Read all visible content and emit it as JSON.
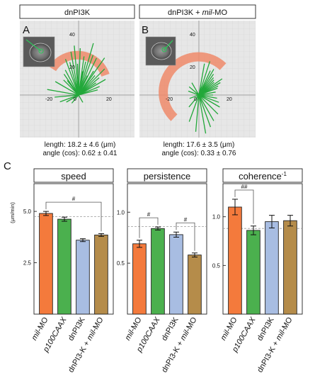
{
  "panel_a": {
    "letter": "A",
    "title": "dnPI3K",
    "tick_labels": [
      "40",
      "20",
      "-20",
      "0",
      "20"
    ],
    "length_label": "length: 18.2 ± 4.6 (μm)",
    "angle_label": "angle (cos): 0.62 ± 0.41"
  },
  "panel_b": {
    "letter": "B",
    "title_prefix": "dnPI3K + ",
    "title_italic": "mil",
    "title_suffix": "-MO",
    "tick_labels": [
      "40",
      "20",
      "-20",
      "0",
      "20"
    ],
    "length_label": "length: 17.6 ± 3.5 (μm)",
    "angle_label": "angle (cos): 0.33 ± 0.76"
  },
  "panel_c": {
    "letter": "C",
    "unit_label": "(μm/min)",
    "inverse_sup": "-1"
  },
  "category_labels": [
    {
      "italic": "mil",
      "rest": "-MO"
    },
    {
      "italic": "p100CAAX",
      "rest": ""
    },
    {
      "italic": "",
      "rest": "dnPI3K"
    },
    {
      "prefix": "dnPI3-K + ",
      "italic": "mil",
      "rest": "-MO"
    }
  ],
  "chart_data": [
    {
      "type": "bar",
      "title": "speed",
      "ylabel": "(μm/min)",
      "ylim": [
        0,
        6.35
      ],
      "yticks": [
        2.5,
        5.0
      ],
      "yticklabels": [
        "2.5",
        "5.0"
      ],
      "reference_line": 4.75,
      "categories": [
        "mil-MO",
        "p100CAAX",
        "dnPI3K",
        "dnPI3-K + mil-MO"
      ],
      "values": [
        4.9,
        4.62,
        3.6,
        3.85
      ],
      "errors": [
        0.1,
        0.1,
        0.07,
        0.07
      ],
      "colors": [
        "#f47a3c",
        "#4bb04e",
        "#a8bde2",
        "#b58c4a"
      ],
      "significance": [
        {
          "from": 0,
          "to": 3,
          "label": "#"
        }
      ]
    },
    {
      "type": "bar",
      "title": "persistence",
      "ylim": [
        0,
        1.28
      ],
      "yticks": [
        0.5,
        1.0
      ],
      "yticklabels": [
        "0.5",
        "1.0"
      ],
      "reference_line": 0.86,
      "categories": [
        "mil-MO",
        "p100CAAX",
        "dnPI3K",
        "dnPI3-K + mil-MO"
      ],
      "values": [
        0.69,
        0.84,
        0.78,
        0.58
      ],
      "errors": [
        0.035,
        0.015,
        0.025,
        0.02
      ],
      "colors": [
        "#f47a3c",
        "#4bb04e",
        "#a8bde2",
        "#b58c4a"
      ],
      "significance": [
        {
          "from": 0,
          "to": 1,
          "label": "#"
        },
        {
          "from": 2,
          "to": 3,
          "label": "#"
        }
      ]
    },
    {
      "type": "bar",
      "title": "coherence",
      "ylim": [
        0,
        1.34
      ],
      "yticks": [
        0.5,
        1.0
      ],
      "yticklabels": [
        "0.5",
        "1.0"
      ],
      "reference_line": 0.88,
      "categories": [
        "mil-MO",
        "p100CAAX",
        "dnPI3K",
        "dnPI3-K + mil-MO"
      ],
      "values": [
        1.1,
        0.86,
        0.95,
        0.96
      ],
      "errors": [
        0.08,
        0.045,
        0.065,
        0.055
      ],
      "colors": [
        "#f47a3c",
        "#4bb04e",
        "#a8bde2",
        "#b58c4a"
      ],
      "significance": [
        {
          "from": 0,
          "to": 1,
          "label": "##"
        }
      ]
    }
  ]
}
